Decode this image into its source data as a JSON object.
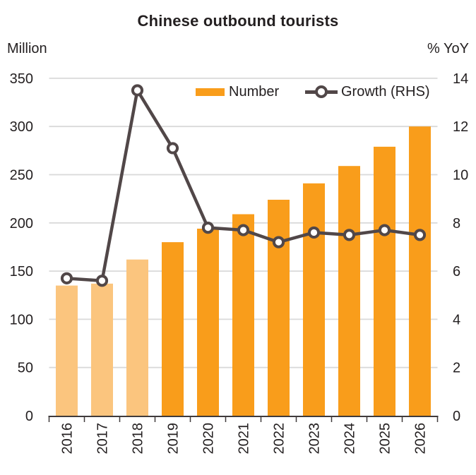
{
  "chart_data": {
    "type": "combo-bar-line",
    "title": "Chinese outbound tourists",
    "categories": [
      "2016",
      "2017",
      "2018",
      "2019",
      "2020",
      "2021",
      "2022",
      "2023",
      "2024",
      "2025",
      "2026"
    ],
    "series": [
      {
        "name": "Number",
        "type": "bar",
        "axis": "left",
        "values": [
          135,
          137,
          162,
          180,
          194,
          209,
          224,
          241,
          259,
          279,
          300
        ],
        "colors": [
          "#FBC57E",
          "#FBC57E",
          "#FBC57E",
          "#F99D1B",
          "#F99D1B",
          "#F99D1B",
          "#F99D1B",
          "#F99D1B",
          "#F99D1B",
          "#F99D1B",
          "#F99D1B"
        ]
      },
      {
        "name": "Growth (RHS)",
        "type": "line",
        "axis": "right",
        "values": [
          5.7,
          5.6,
          13.5,
          11.1,
          7.8,
          7.7,
          7.2,
          7.6,
          7.5,
          7.7,
          7.5
        ],
        "color": "#514748",
        "marker": {
          "shape": "circle",
          "fill": "#FFFFFF",
          "stroke": "#514748"
        }
      }
    ],
    "left_axis": {
      "unit": "Million",
      "min": 0,
      "max": 350,
      "step": 50,
      "ticks": [
        350,
        300,
        250,
        200,
        150,
        100,
        50,
        0
      ]
    },
    "right_axis": {
      "unit": "% YoY",
      "min": 0,
      "max": 14,
      "step": 2,
      "ticks": [
        14,
        12,
        10,
        8,
        6,
        4,
        2,
        0
      ]
    },
    "x_axis": {
      "label_rotation": -90,
      "line_color": "#3F3A3B"
    },
    "legend": {
      "position": "top-inside",
      "items": [
        {
          "label": "Number",
          "swatch": "bar",
          "color": "#F99D1B"
        },
        {
          "label": "Growth (RHS)",
          "swatch": "line-marker",
          "color": "#514748"
        }
      ]
    },
    "grid": {
      "show": true,
      "color": "#D9D9D9"
    },
    "background": "#FFFFFF",
    "text_color": "#231F20"
  }
}
